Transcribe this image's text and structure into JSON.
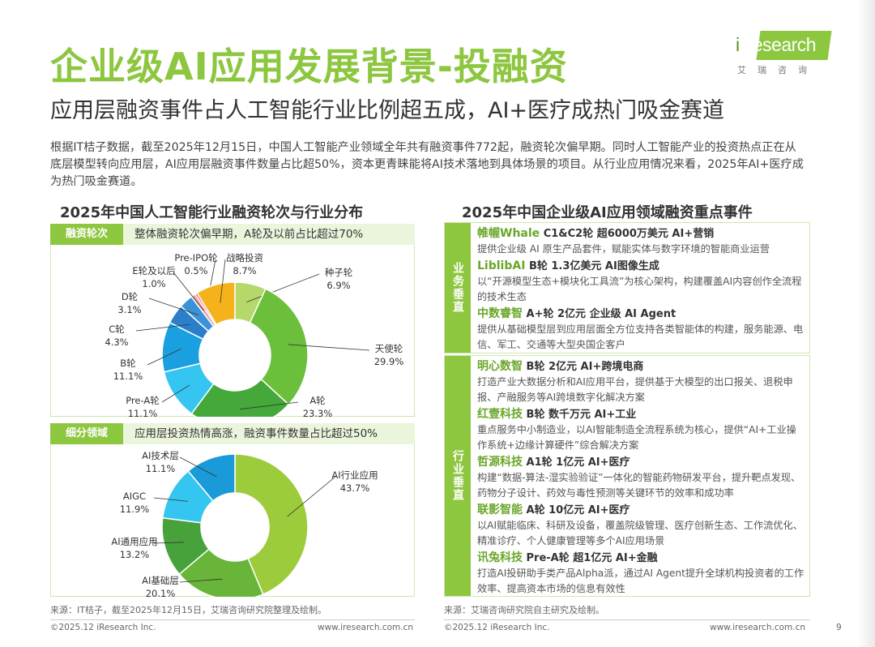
{
  "logo": {
    "brand_i": "i",
    "brand_rest": "Research",
    "subtitle": "艾瑞咨询"
  },
  "header": {
    "title": "企业级AI应用发展背景-投融资",
    "subtitle": "应用层融资事件占人工智能行业比例超五成，AI+医疗成热门吸金赛道"
  },
  "intro": "根据IT桔子数据，截至2025年12月15日，中国人工智能产业领域全年共有融资事件772起，融资轮次偏早期。同时人工智能产业的投资热点正在从底层模型转向应用层，AI应用层融资事件数量占比超50%，资本更青睐能将AI技术落地到具体场景的项目。从行业应用情况来看，2025年AI+医疗成为热门吸金赛道。",
  "left_panel": {
    "title": "2025年中国人工智能行业融资轮次与行业分布",
    "section1": {
      "tag": "融资轮次",
      "desc": "整体融资轮次偏早期，A轮及以前占比超过70%"
    },
    "section2": {
      "tag": "细分领域",
      "desc": "应用层投资热情高涨，融资事件数量占比超过50%"
    },
    "source": "来源：IT桔子，截至2025年12月15日，艾瑞咨询研究院整理及绘制。"
  },
  "chart_data": [
    {
      "type": "pie",
      "title": "融资轮次",
      "labels": [
        "种子轮",
        "天使轮",
        "A轮",
        "Pre-A轮",
        "B轮",
        "C轮",
        "D轮",
        "E轮及以后",
        "Pre-IPO轮",
        "战略投资"
      ],
      "values": [
        6.9,
        29.9,
        23.3,
        11.1,
        11.1,
        4.3,
        3.1,
        1.0,
        0.5,
        8.7
      ],
      "value_labels": [
        "6.9%",
        "29.9%",
        "23.3%",
        "11.1%",
        "11.1%",
        "4.3%",
        "3.1%",
        "1.0%",
        "0.5%",
        "8.7%"
      ],
      "colors": [
        "#b5d86a",
        "#6cbf3b",
        "#45a83a",
        "#34c6f0",
        "#1aa0e0",
        "#2b7fc9",
        "#3a93d8",
        "#f29aa0",
        "#e0607a",
        "#f5b21a"
      ]
    },
    {
      "type": "pie",
      "title": "细分领域",
      "labels": [
        "AI行业应用",
        "AI基础层",
        "AI通用应用",
        "AIGC",
        "AI技术层"
      ],
      "values": [
        43.7,
        20.1,
        13.2,
        11.9,
        11.1
      ],
      "value_labels": [
        "43.7%",
        "20.1%",
        "13.2%",
        "11.9%",
        "11.1%"
      ],
      "colors": [
        "#9ccc3c",
        "#68b53a",
        "#47a23c",
        "#34c6f0",
        "#1a9ad8"
      ]
    }
  ],
  "right_panel": {
    "title": "2025年中国企业级AI应用领域融资重点事件",
    "groups": [
      {
        "tag": "业务垂直",
        "events": [
          {
            "company": "帷幄Whale",
            "deal": "C1&C2轮 超6000万美元 AI+营销",
            "desc": "提供企业级 AI 原生产品套件，赋能实体与数字环境的智能商业运营"
          },
          {
            "company": "LiblibAI",
            "deal": "B轮 1.3亿美元 AI图像生成",
            "desc": "以“开源模型生态+模块化工具流”为核心架构，构建覆盖AI内容创作全流程的技术生态"
          },
          {
            "company": "中数睿智",
            "deal": "A+轮 2亿元 企业级 AI Agent",
            "desc": "提供从基础模型层到应用层面全方位支持各类智能体的构建，服务能源、电信、军工、交通等大型央国企客户"
          }
        ]
      },
      {
        "tag": "行业垂直",
        "events": [
          {
            "company": "明心数智",
            "deal": "B轮 2亿元 AI+跨境电商",
            "desc": "打造产业大数据分析和AI应用平台，提供基于大模型的出口报关、退税申报、产融服务等AI跨境数字化解决方案"
          },
          {
            "company": "红壹科技",
            "deal": "B轮 数千万元 AI+工业",
            "desc": "重点服务中小制造业，以AI智能制造全流程系统为核心，提供“AI+工业操作系统+边缘计算硬件”综合解决方案"
          },
          {
            "company": "哲源科技",
            "deal": "A1轮 1亿元 AI+医疗",
            "desc": "构建“数据-算法-湿实验验证”一体化的智能药物研发平台，提升靶点发现、药物分子设计、药效与毒性预测等关键环节的效率和成功率"
          },
          {
            "company": "联影智能",
            "deal": "A轮 10亿元 AI+医疗",
            "desc": "以AI赋能临床、科研及设备，覆盖院级管理、医疗创新生态、工作流优化、精准诊疗、个人健康管理等多个AI应用场景"
          },
          {
            "company": "讯兔科技",
            "deal": "Pre-A轮  超1亿元 AI+金融",
            "desc": "打造AI投研助手类产品Alpha派，通过AI Agent提升全球机构投资者的工作效率、提高资本市场的信息有效性"
          }
        ]
      }
    ],
    "source": "来源：艾瑞咨询研究院自主研究及绘制。"
  },
  "footer": {
    "copyright": "©2025.12 iResearch Inc.",
    "website": "www.iresearch.com.cn",
    "page": "9"
  }
}
